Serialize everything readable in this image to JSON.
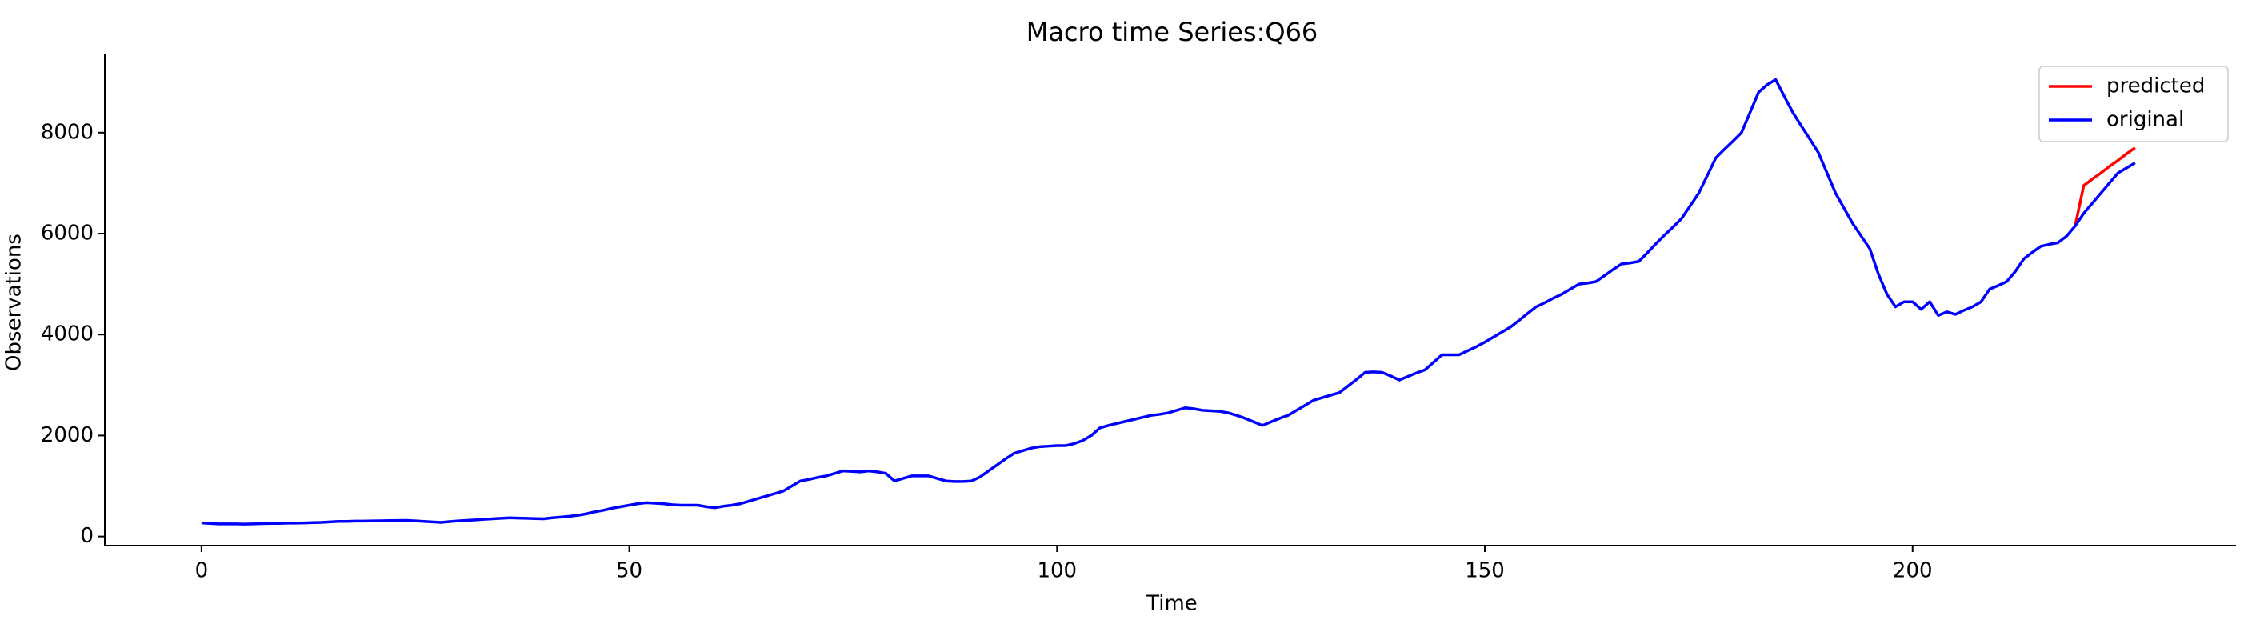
{
  "chart_data": {
    "type": "line",
    "title": "Macro time Series:Q66",
    "xlabel": "Time",
    "ylabel": "Observations",
    "x": [
      0,
      1,
      2,
      3,
      4,
      5,
      6,
      7,
      8,
      9,
      10,
      11,
      12,
      13,
      14,
      15,
      16,
      17,
      18,
      19,
      20,
      21,
      22,
      23,
      24,
      25,
      26,
      27,
      28,
      29,
      30,
      31,
      32,
      33,
      34,
      35,
      36,
      37,
      38,
      39,
      40,
      41,
      42,
      43,
      44,
      45,
      46,
      47,
      48,
      49,
      50,
      51,
      52,
      53,
      54,
      55,
      56,
      57,
      58,
      59,
      60,
      61,
      62,
      63,
      64,
      65,
      66,
      67,
      68,
      69,
      70,
      71,
      72,
      73,
      74,
      75,
      76,
      77,
      78,
      79,
      80,
      81,
      82,
      83,
      84,
      85,
      86,
      87,
      88,
      89,
      90,
      91,
      92,
      93,
      94,
      95,
      96,
      97,
      98,
      99,
      100,
      101,
      102,
      103,
      104,
      105,
      106,
      107,
      108,
      109,
      110,
      111,
      112,
      113,
      114,
      115,
      116,
      117,
      118,
      119,
      120,
      121,
      122,
      123,
      124,
      125,
      126,
      127,
      128,
      129,
      130,
      131,
      132,
      133,
      134,
      135,
      136,
      137,
      138,
      139,
      140,
      141,
      142,
      143,
      144,
      145,
      146,
      147,
      148,
      149,
      150,
      151,
      152,
      153,
      154,
      155,
      156,
      157,
      158,
      159,
      160,
      161,
      162,
      163,
      164,
      165,
      166,
      167,
      168,
      169,
      170,
      171,
      172,
      173,
      174,
      175,
      176,
      177,
      178,
      179,
      180,
      181,
      182,
      183,
      184,
      185,
      186,
      187,
      188,
      189,
      190,
      191,
      192,
      193,
      194,
      195,
      196,
      197,
      198,
      199,
      200,
      201,
      202,
      203,
      204,
      205,
      206,
      207,
      208,
      209,
      210,
      211,
      212,
      213,
      214,
      215,
      216,
      217,
      218,
      219,
      220,
      221,
      222,
      223,
      224,
      225,
      226
    ],
    "series": [
      {
        "name": "predicted",
        "color": "#ff0000",
        "x": [
          219,
          220,
          221,
          222,
          223,
          224,
          225,
          226
        ],
        "values": [
          6150,
          6950,
          7080,
          7200,
          7330,
          7450,
          7580,
          7700
        ]
      },
      {
        "name": "original",
        "color": "#0000ff",
        "values": [
          270,
          260,
          250,
          250,
          250,
          245,
          250,
          255,
          260,
          260,
          265,
          265,
          270,
          275,
          280,
          290,
          300,
          300,
          305,
          305,
          310,
          312,
          315,
          318,
          320,
          310,
          300,
          290,
          280,
          295,
          310,
          320,
          330,
          340,
          350,
          360,
          370,
          365,
          360,
          355,
          350,
          370,
          385,
          400,
          420,
          450,
          490,
          520,
          560,
          590,
          620,
          650,
          670,
          660,
          650,
          630,
          620,
          620,
          620,
          590,
          570,
          600,
          620,
          650,
          700,
          750,
          800,
          850,
          900,
          1000,
          1100,
          1130,
          1170,
          1200,
          1250,
          1300,
          1290,
          1280,
          1300,
          1280,
          1250,
          1100,
          1150,
          1200,
          1200,
          1200,
          1150,
          1100,
          1090,
          1090,
          1100,
          1180,
          1300,
          1420,
          1540,
          1650,
          1700,
          1750,
          1780,
          1790,
          1800,
          1800,
          1840,
          1900,
          2000,
          2150,
          2200,
          2240,
          2280,
          2320,
          2360,
          2400,
          2420,
          2450,
          2500,
          2550,
          2530,
          2500,
          2490,
          2480,
          2450,
          2400,
          2340,
          2270,
          2200,
          2270,
          2340,
          2400,
          2500,
          2600,
          2700,
          2750,
          2800,
          2850,
          2980,
          3110,
          3250,
          3260,
          3250,
          3180,
          3100,
          3170,
          3240,
          3300,
          3450,
          3600,
          3600,
          3600,
          3680,
          3760,
          3850,
          3950,
          4050,
          4150,
          4280,
          4420,
          4550,
          4630,
          4720,
          4800,
          4900,
          5000,
          5020,
          5050,
          5170,
          5290,
          5400,
          5420,
          5450,
          5620,
          5800,
          5970,
          6130,
          6300,
          6550,
          6800,
          7150,
          7500,
          7670,
          7830,
          8000,
          8400,
          8800,
          8950,
          9050,
          8720,
          8400,
          8130,
          7870,
          7600,
          7200,
          6800,
          6500,
          6200,
          5950,
          5700,
          5200,
          4800,
          4550,
          4650,
          4650,
          4500,
          4650,
          4380,
          4450,
          4400,
          4480,
          4550,
          4650,
          4900,
          4970,
          5050,
          5250,
          5500,
          5630,
          5750,
          5790,
          5820,
          5950,
          6150,
          6400,
          6600,
          6800,
          7000,
          7200,
          7300,
          7400
        ]
      }
    ],
    "xlim": [
      -11.3,
      237.8
    ],
    "ylim": [
      -180,
      9550
    ],
    "xticks": [
      0,
      50,
      100,
      150,
      200
    ],
    "yticks": [
      0,
      2000,
      4000,
      6000,
      8000
    ],
    "legend": "upper right",
    "grid": false
  }
}
